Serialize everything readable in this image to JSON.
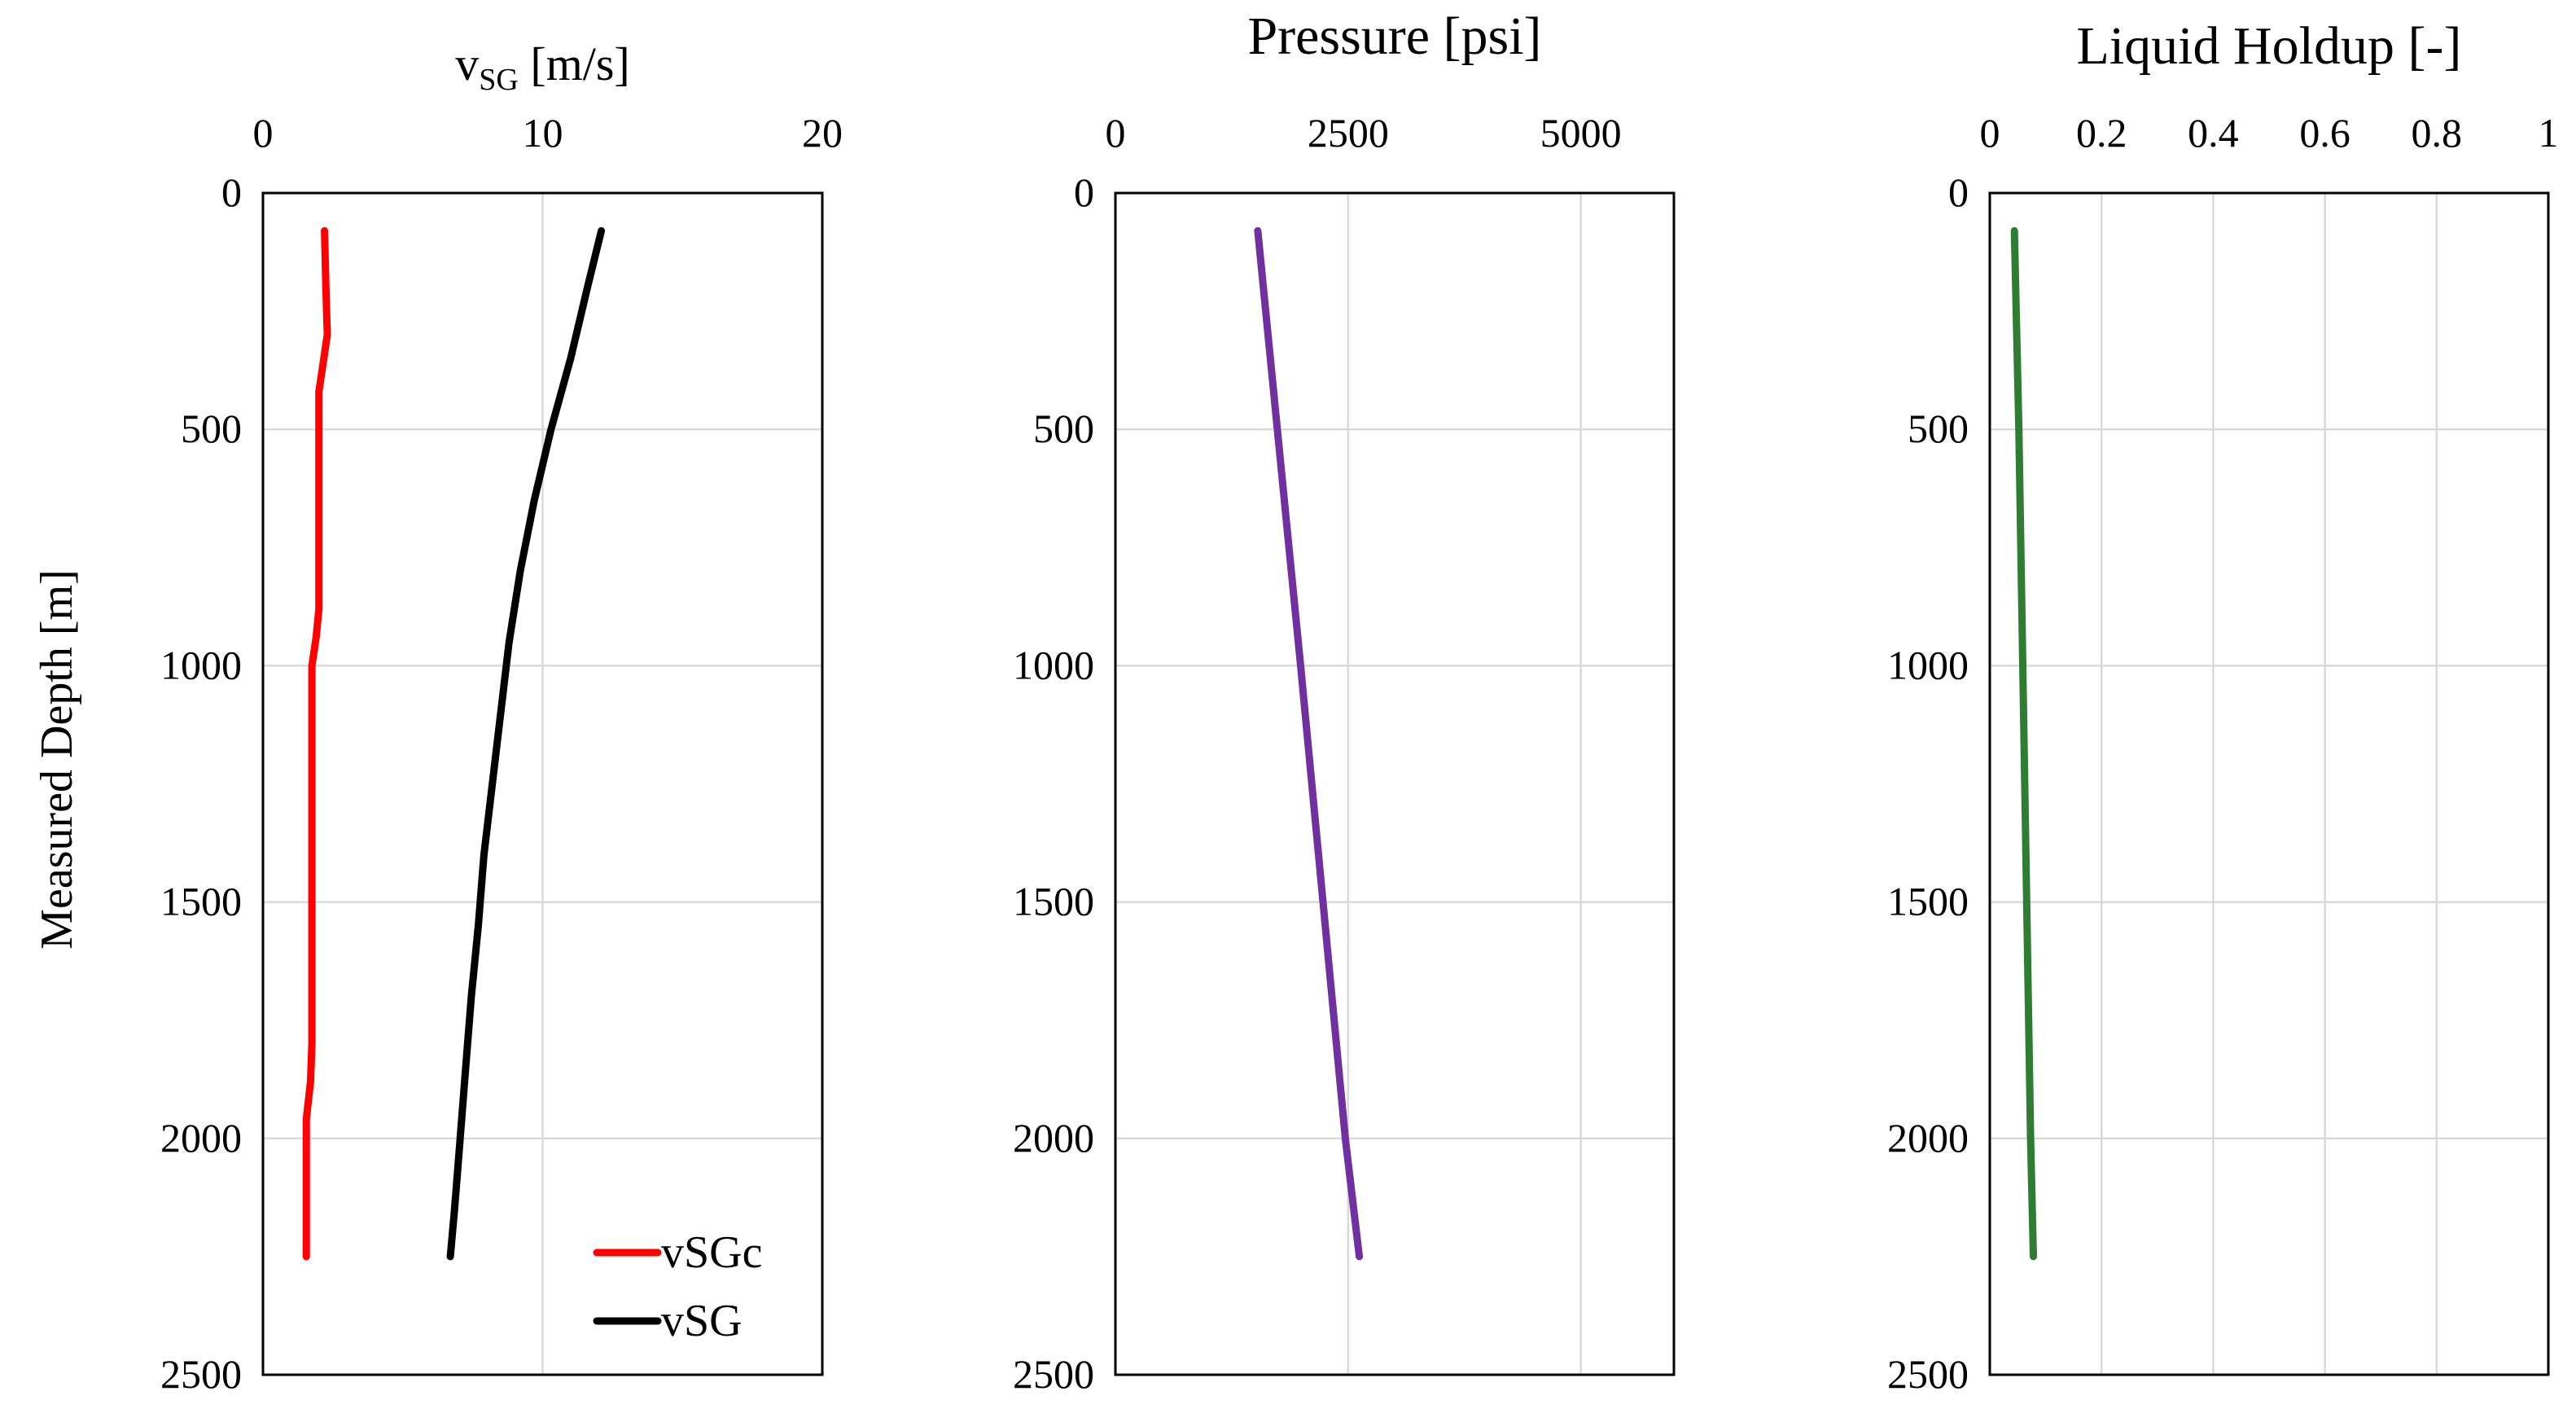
{
  "chart_data": [
    {
      "type": "line",
      "title": "",
      "xlabel_main": "v",
      "xlabel_sub": "SG",
      "xlabel_units": " [m/s]",
      "ylabel": "Measured Depth [m]",
      "xlim": [
        0,
        20
      ],
      "ylim": [
        0,
        2500
      ],
      "y_inverted": true,
      "x_axis_position": "top",
      "grid": true,
      "xticks": [
        "0",
        "10",
        "20"
      ],
      "yticks": [
        "0",
        "500",
        "1000",
        "1500",
        "2000",
        "2500"
      ],
      "legend_position": "bottom-right",
      "series": [
        {
          "name": "vSGc",
          "color": "#ff0000",
          "points": [
            [
              2.2,
              80
            ],
            [
              2.25,
              200
            ],
            [
              2.3,
              300
            ],
            [
              2.15,
              360
            ],
            [
              2.0,
              420
            ],
            [
              2.0,
              600
            ],
            [
              2.0,
              800
            ],
            [
              2.0,
              880
            ],
            [
              1.9,
              940
            ],
            [
              1.75,
              1000
            ],
            [
              1.75,
              1200
            ],
            [
              1.75,
              1400
            ],
            [
              1.75,
              1600
            ],
            [
              1.75,
              1800
            ],
            [
              1.7,
              1880
            ],
            [
              1.55,
              1960
            ],
            [
              1.55,
              2100
            ],
            [
              1.55,
              2250
            ]
          ]
        },
        {
          "name": "vSG",
          "color": "#000000",
          "points": [
            [
              12.1,
              80
            ],
            [
              11.6,
              200
            ],
            [
              11.0,
              350
            ],
            [
              10.3,
              500
            ],
            [
              9.7,
              650
            ],
            [
              9.2,
              800
            ],
            [
              8.8,
              950
            ],
            [
              8.5,
              1100
            ],
            [
              8.2,
              1250
            ],
            [
              7.9,
              1400
            ],
            [
              7.7,
              1550
            ],
            [
              7.45,
              1700
            ],
            [
              7.25,
              1850
            ],
            [
              7.05,
              2000
            ],
            [
              6.85,
              2150
            ],
            [
              6.7,
              2250
            ]
          ]
        }
      ]
    },
    {
      "type": "line",
      "title": "",
      "xlabel": "Pressure [psi]",
      "xlim": [
        0,
        6000
      ],
      "ylim": [
        0,
        2500
      ],
      "y_inverted": true,
      "x_axis_position": "top",
      "grid": true,
      "xticks": [
        "0",
        "2500",
        "5000"
      ],
      "yticks": [
        "0",
        "500",
        "1000",
        "1500",
        "2000",
        "2500"
      ],
      "series": [
        {
          "name": "Pressure",
          "color": "#7030a0",
          "points": [
            [
              1530,
              80
            ],
            [
              1740,
              500
            ],
            [
              1990,
              1000
            ],
            [
              2230,
              1500
            ],
            [
              2470,
              2000
            ],
            [
              2620,
              2250
            ]
          ]
        }
      ]
    },
    {
      "type": "line",
      "title": "",
      "xlabel": "Liquid Holdup [-]",
      "xlim": [
        0,
        1
      ],
      "ylim": [
        0,
        2500
      ],
      "y_inverted": true,
      "x_axis_position": "top",
      "grid": true,
      "xticks": [
        "0",
        "0.2",
        "0.4",
        "0.6",
        "0.8",
        "1"
      ],
      "yticks": [
        "0",
        "500",
        "1000",
        "1500",
        "2000",
        "2500"
      ],
      "series": [
        {
          "name": "Liquid Holdup",
          "color": "#2e7d32",
          "points": [
            [
              0.044,
              80
            ],
            [
              0.052,
              500
            ],
            [
              0.059,
              1000
            ],
            [
              0.066,
              1500
            ],
            [
              0.073,
              2000
            ],
            [
              0.078,
              2250
            ]
          ]
        }
      ]
    }
  ]
}
